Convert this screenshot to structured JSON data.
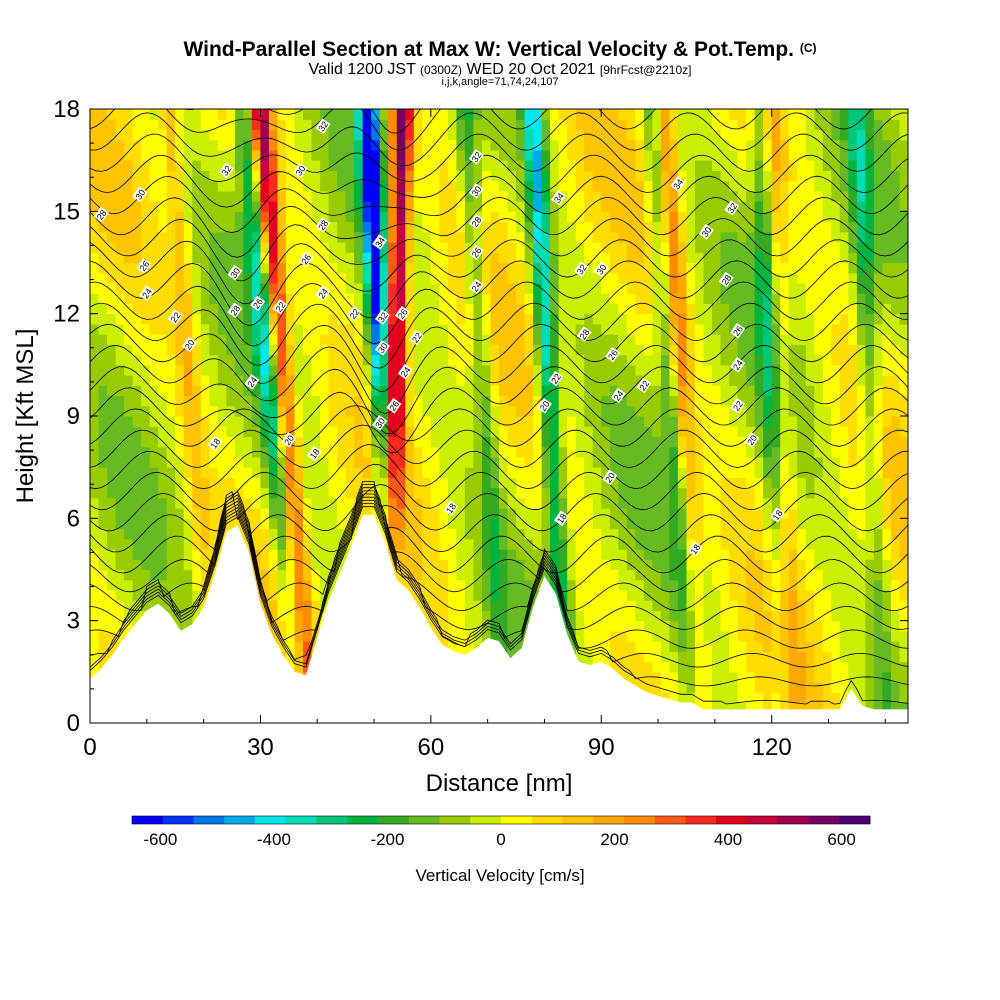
{
  "chart_data": {
    "type": "heatmap",
    "title": "Wind-Parallel Section at Max W: Vertical Velocity & Pot.Temp.",
    "title_mark": "(C)",
    "subtitle_parts": [
      "Valid 1200 JST",
      "(0300Z)",
      "WED 20 Oct 2021",
      "[9hrFcst@2210z]"
    ],
    "subtitle2": "i,j,k,angle=71,74,24,107",
    "xlabel": "Distance [nm]",
    "ylabel": "Height [Kft MSL]",
    "xlim": [
      0,
      144
    ],
    "ylim": [
      0,
      18
    ],
    "xticks": [
      0,
      30,
      60,
      90,
      120
    ],
    "yticks": [
      0,
      3,
      6,
      9,
      12,
      15,
      18
    ],
    "colorbar": {
      "label": "Vertical Velocity [cm/s]",
      "range": [
        -650,
        650
      ],
      "ticks": [
        -600,
        -400,
        -200,
        0,
        200,
        400,
        600
      ],
      "colors": [
        "#0000ff",
        "#0033ff",
        "#0077ee",
        "#00aaee",
        "#00e8ee",
        "#00dcb4",
        "#00c878",
        "#00b440",
        "#33aa22",
        "#66bb22",
        "#99cc00",
        "#ccee00",
        "#ffff00",
        "#ffdd00",
        "#ffc400",
        "#ffa800",
        "#ff8c00",
        "#ff5a14",
        "#ff2a1e",
        "#e4001e",
        "#c8003c",
        "#a00050",
        "#780064",
        "#500078"
      ]
    },
    "w_cores": [
      {
        "x_top": 27.0,
        "x_bottom": 37.0,
        "w": -300
      },
      {
        "x_top": 30.0,
        "x_bottom": 39.0,
        "w": 450
      },
      {
        "x_top": 49.0,
        "x_bottom": 54.0,
        "w": -600
      },
      {
        "x_top": 55.0,
        "x_bottom": 52.0,
        "w": 600
      },
      {
        "x_top": 78.0,
        "x_bottom": 84.0,
        "w": -400
      },
      {
        "x_top": 66.0,
        "x_bottom": 73.0,
        "w": -200
      },
      {
        "x_top": 99.0,
        "x_bottom": 106.0,
        "w": -200
      },
      {
        "x_top": 101.0,
        "x_bottom": 108.0,
        "w": 250
      },
      {
        "x_top": 118.0,
        "x_bottom": 122.0,
        "w": -200
      },
      {
        "x_top": 120.0,
        "x_bottom": 124.0,
        "w": 150
      },
      {
        "x_top": 135.0,
        "x_bottom": 140.0,
        "w": -200
      },
      {
        "x_top": 14.0,
        "x_bottom": 22.0,
        "w": 150
      }
    ],
    "terrain": {
      "x": [
        0,
        2,
        4,
        6,
        8,
        10,
        12,
        14,
        16,
        18,
        20,
        22,
        24,
        26,
        28,
        30,
        32,
        34,
        36,
        38,
        40,
        42,
        44,
        46,
        48,
        50,
        52,
        54,
        56,
        58,
        60,
        62,
        64,
        66,
        68,
        70,
        72,
        74,
        76,
        78,
        80,
        82,
        84,
        86,
        88,
        90,
        92,
        94,
        96,
        98,
        100,
        102,
        104,
        106,
        108,
        110,
        112,
        114,
        116,
        118,
        120,
        122,
        124,
        126,
        128,
        130,
        132,
        134,
        136,
        138,
        140,
        142,
        144
      ],
      "y": [
        1.3,
        1.6,
        2.0,
        2.5,
        2.9,
        3.3,
        3.5,
        3.2,
        2.7,
        2.9,
        3.4,
        4.4,
        5.6,
        5.8,
        5.0,
        3.5,
        2.6,
        2.0,
        1.5,
        1.4,
        2.5,
        3.6,
        4.4,
        5.2,
        6.1,
        6.1,
        5.3,
        4.2,
        3.9,
        3.4,
        2.8,
        2.3,
        2.1,
        2.0,
        2.2,
        2.5,
        2.4,
        1.9,
        2.2,
        3.4,
        4.3,
        3.8,
        2.6,
        1.8,
        1.7,
        1.8,
        1.6,
        1.3,
        1.1,
        0.9,
        0.8,
        0.7,
        0.6,
        0.6,
        0.4,
        0.4,
        0.4,
        0.4,
        0.4,
        0.4,
        0.4,
        0.4,
        0.4,
        0.4,
        0.4,
        0.4,
        0.4,
        1.0,
        0.5,
        0.4,
        0.4,
        0.4,
        0.4
      ]
    },
    "contour_labels": [
      {
        "text": "30",
        "x": 8.8,
        "y": 15.5
      },
      {
        "text": "28",
        "x": 2.0,
        "y": 14.9
      },
      {
        "text": "26",
        "x": 9.5,
        "y": 13.4
      },
      {
        "text": "24",
        "x": 10.0,
        "y": 12.6
      },
      {
        "text": "22",
        "x": 15.0,
        "y": 11.9
      },
      {
        "text": "20",
        "x": 17.5,
        "y": 11.1
      },
      {
        "text": "18",
        "x": 22.0,
        "y": 8.2
      },
      {
        "text": "32",
        "x": 24.0,
        "y": 16.2
      },
      {
        "text": "30",
        "x": 25.5,
        "y": 13.2
      },
      {
        "text": "28",
        "x": 25.5,
        "y": 12.1
      },
      {
        "text": "26",
        "x": 29.5,
        "y": 12.3
      },
      {
        "text": "22",
        "x": 33.5,
        "y": 12.2
      },
      {
        "text": "24",
        "x": 28.5,
        "y": 10.0
      },
      {
        "text": "20",
        "x": 35.0,
        "y": 8.3
      },
      {
        "text": "18",
        "x": 39.5,
        "y": 7.9
      },
      {
        "text": "32",
        "x": 41.0,
        "y": 17.5
      },
      {
        "text": "30",
        "x": 37.0,
        "y": 16.2
      },
      {
        "text": "28",
        "x": 41.0,
        "y": 14.6
      },
      {
        "text": "26",
        "x": 38.0,
        "y": 13.6
      },
      {
        "text": "24",
        "x": 41.0,
        "y": 12.6
      },
      {
        "text": "22",
        "x": 46.5,
        "y": 12.0
      },
      {
        "text": "34",
        "x": 51.0,
        "y": 14.1
      },
      {
        "text": "32",
        "x": 51.5,
        "y": 11.9
      },
      {
        "text": "30",
        "x": 51.5,
        "y": 11.0
      },
      {
        "text": "26",
        "x": 55.0,
        "y": 12.0
      },
      {
        "text": "22",
        "x": 57.5,
        "y": 11.3
      },
      {
        "text": "24",
        "x": 55.5,
        "y": 10.3
      },
      {
        "text": "26",
        "x": 53.5,
        "y": 9.3
      },
      {
        "text": "30",
        "x": 51.0,
        "y": 8.8
      },
      {
        "text": "18",
        "x": 63.5,
        "y": 6.3
      },
      {
        "text": "32",
        "x": 68.0,
        "y": 16.6
      },
      {
        "text": "30",
        "x": 68.0,
        "y": 15.6
      },
      {
        "text": "28",
        "x": 68.0,
        "y": 14.7
      },
      {
        "text": "26",
        "x": 68.0,
        "y": 13.8
      },
      {
        "text": "24",
        "x": 68.0,
        "y": 12.8
      },
      {
        "text": "34",
        "x": 82.5,
        "y": 15.4
      },
      {
        "text": "32",
        "x": 86.5,
        "y": 13.3
      },
      {
        "text": "30",
        "x": 90.0,
        "y": 13.3
      },
      {
        "text": "28",
        "x": 87.0,
        "y": 11.4
      },
      {
        "text": "26",
        "x": 92.0,
        "y": 10.8
      },
      {
        "text": "24",
        "x": 93.0,
        "y": 9.6
      },
      {
        "text": "22",
        "x": 82.0,
        "y": 10.1
      },
      {
        "text": "22",
        "x": 97.5,
        "y": 9.9
      },
      {
        "text": "20",
        "x": 80.0,
        "y": 9.3
      },
      {
        "text": "20",
        "x": 91.5,
        "y": 7.2
      },
      {
        "text": "18",
        "x": 83.0,
        "y": 6.0
      },
      {
        "text": "34",
        "x": 103.5,
        "y": 15.8
      },
      {
        "text": "32",
        "x": 113.0,
        "y": 15.1
      },
      {
        "text": "30",
        "x": 108.5,
        "y": 14.4
      },
      {
        "text": "28",
        "x": 112.0,
        "y": 13.0
      },
      {
        "text": "26",
        "x": 114.0,
        "y": 11.5
      },
      {
        "text": "24",
        "x": 114.0,
        "y": 10.5
      },
      {
        "text": "22",
        "x": 114.0,
        "y": 9.3
      },
      {
        "text": "20",
        "x": 116.5,
        "y": 8.3
      },
      {
        "text": "18",
        "x": 121.0,
        "y": 6.1
      },
      {
        "text": "18",
        "x": 106.5,
        "y": 5.1
      }
    ]
  }
}
